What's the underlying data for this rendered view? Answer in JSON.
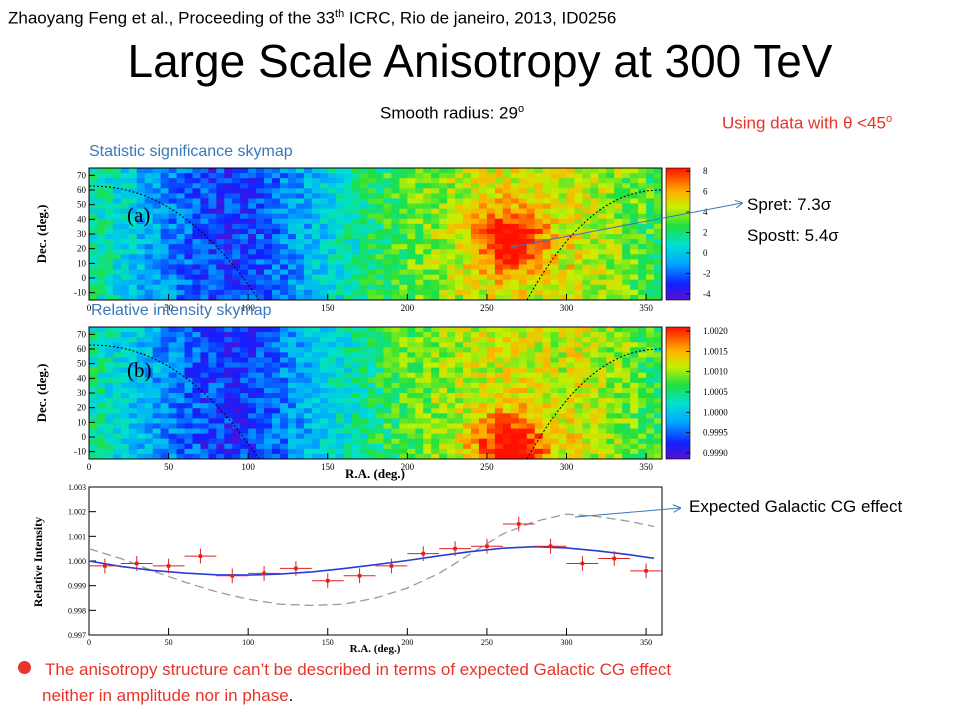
{
  "header": {
    "citation_pre": "Zhaoyang Feng et al., Proceeding of the 33",
    "citation_sup": "th",
    "citation_post": " ICRC, Rio de janeiro,  2013, ID0256",
    "title": "Large Scale Anisotropy at 300 TeV",
    "smooth_pre": "Smooth radius: 29",
    "smooth_sup": "o",
    "using_pre": "Using data with θ <45",
    "using_sup": "o"
  },
  "labels": {
    "significance_map": "Statistic significance skymap",
    "intensity_map": "Relative intensity skymap",
    "spret": "Spret: 7.3σ",
    "spostt": "Spostt: 5.4σ",
    "cg_effect": "Expected Galactic CG effect",
    "conclusion_line1": "The anisotropy structure can’t be described in terms of expected Galactic CG effect",
    "conclusion_line2": "neither  in amplitude nor in phase",
    "conclusion_end": "."
  },
  "colors": {
    "accent_red": "#e8332a",
    "label_blue": "#3a78b8",
    "fit_blue": "#2a3cd8",
    "data_red": "#e02020",
    "expected_gray": "#999999"
  },
  "chart_data": [
    {
      "type": "heatmap",
      "panel_label": "(a)",
      "xlim": [
        0,
        360
      ],
      "ylim": [
        -15,
        75
      ],
      "x_ticks": [
        0,
        50,
        100,
        150,
        200,
        250,
        300,
        350
      ],
      "x_tick_labels": [
        "0",
        "50",
        "100",
        "150",
        "200",
        "250",
        "300",
        "350"
      ],
      "y_ticks": [
        -10,
        0,
        10,
        20,
        30,
        40,
        50,
        60,
        70
      ],
      "y_tick_labels": [
        "-10",
        "0",
        "10",
        "20",
        "30",
        "40",
        "50",
        "60",
        "70"
      ],
      "ylabel": "Dec. (deg.)",
      "colorbar": {
        "range": [
          -4.6,
          8.3
        ],
        "ticks": [
          -4,
          -2,
          0,
          2,
          4,
          6,
          8
        ],
        "tick_labels": [
          "-4",
          "-2",
          "0",
          "2",
          "4",
          "6",
          "8"
        ]
      },
      "model": {
        "amplitude_shape": "ra-profile",
        "min_ra": 90,
        "max_ra": 265,
        "peak_dec": 25,
        "peak_value": 7.3
      }
    },
    {
      "type": "heatmap",
      "panel_label": "(b)",
      "xlim": [
        0,
        360
      ],
      "ylim": [
        -15,
        75
      ],
      "x_ticks": [
        0,
        50,
        100,
        150,
        200,
        250,
        300,
        350
      ],
      "x_tick_labels": [
        "0",
        "50",
        "100",
        "150",
        "200",
        "250",
        "300",
        "350"
      ],
      "y_ticks": [
        -10,
        0,
        10,
        20,
        30,
        40,
        50,
        60,
        70
      ],
      "y_tick_labels": [
        "-10",
        "0",
        "10",
        "20",
        "30",
        "40",
        "50",
        "60",
        "70"
      ],
      "xlabel": "R.A. (deg.)",
      "ylabel": "Dec. (deg.)",
      "colorbar": {
        "range": [
          0.99885,
          1.0021
        ],
        "ticks": [
          0.999,
          0.9995,
          1.0,
          1.0005,
          1.001,
          1.0015,
          1.002
        ],
        "tick_labels": [
          "0.9990",
          "0.9995",
          "1.0000",
          "1.0005",
          "1.0010",
          "1.0015",
          "1.0020"
        ]
      },
      "model": {
        "min_ra": 90,
        "max_ra": 265,
        "peak_dec": -8,
        "peak_value": 1.0021
      }
    },
    {
      "type": "scatter",
      "xlim": [
        0,
        360
      ],
      "ylim": [
        0.997,
        1.003
      ],
      "x_ticks": [
        0,
        50,
        100,
        150,
        200,
        250,
        300,
        350
      ],
      "x_tick_labels": [
        "0",
        "50",
        "100",
        "150",
        "200",
        "250",
        "300",
        "350"
      ],
      "y_ticks": [
        0.997,
        0.998,
        0.999,
        1.0,
        1.001,
        1.002,
        1.003
      ],
      "y_tick_labels": [
        "0.997",
        "0.998",
        "0.999",
        "1.000",
        "1.001",
        "1.002",
        "1.003"
      ],
      "xlabel": "R.A. (deg.)",
      "ylabel": "Relative Intensity",
      "points": {
        "x": [
          10,
          30,
          50,
          70,
          90,
          110,
          130,
          150,
          170,
          190,
          210,
          230,
          250,
          270,
          290,
          310,
          330,
          350
        ],
        "y": [
          0.9998,
          0.9999,
          0.9998,
          1.0002,
          0.9994,
          0.9995,
          0.9997,
          0.9992,
          0.9994,
          0.9998,
          1.0003,
          1.0005,
          1.0006,
          1.0015,
          1.0006,
          0.9999,
          1.0001,
          0.9996
        ],
        "y_err": [
          0.0003,
          0.0003,
          0.0003,
          0.0003,
          0.0003,
          0.0003,
          0.0003,
          0.0003,
          0.0003,
          0.0003,
          0.0003,
          0.0003,
          0.0003,
          0.0003,
          0.0003,
          0.0003,
          0.0003,
          0.0003
        ],
        "x_halfwidth": 10
      },
      "fit_curve": {
        "x": [
          0,
          20,
          40,
          60,
          80,
          100,
          120,
          140,
          160,
          180,
          200,
          220,
          240,
          260,
          280,
          300,
          320,
          340,
          355
        ],
        "y": [
          1.0,
          0.99978,
          0.99962,
          0.99951,
          0.99944,
          0.99943,
          0.99947,
          0.99956,
          0.99969,
          0.99985,
          1.00002,
          1.00021,
          1.00038,
          1.00052,
          1.00058,
          1.00053,
          1.00041,
          1.00025,
          1.00011
        ]
      },
      "expected_curve": {
        "x": [
          0,
          20,
          40,
          60,
          80,
          100,
          120,
          140,
          160,
          180,
          200,
          220,
          240,
          260,
          280,
          300,
          320,
          340,
          355
        ],
        "y": [
          1.0005,
          1.0001,
          0.9996,
          0.99915,
          0.99875,
          0.99845,
          0.99825,
          0.9982,
          0.99825,
          0.9985,
          0.9989,
          0.9995,
          1.0003,
          1.0011,
          1.0016,
          1.0019,
          1.0018,
          1.0016,
          1.0014
        ]
      }
    }
  ]
}
